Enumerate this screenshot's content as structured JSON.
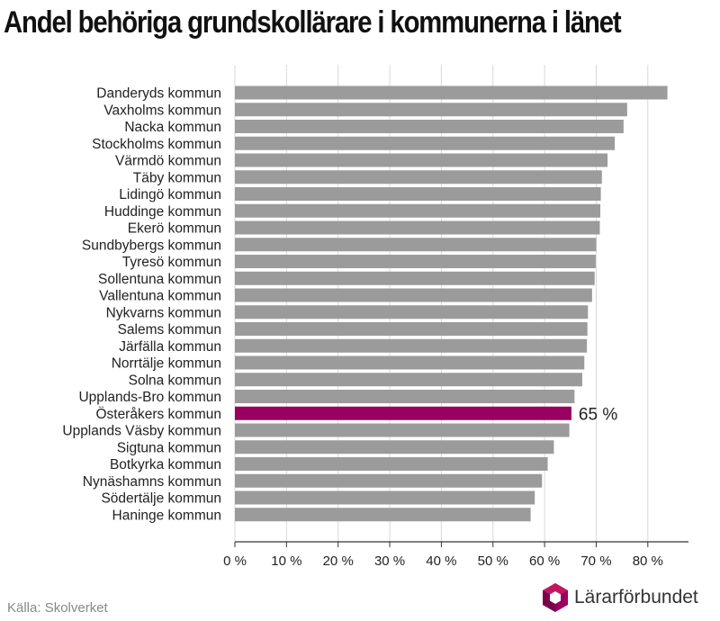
{
  "title": "Andel behöriga grundskollärare i kommunerna i länet",
  "source": "Källa: Skolverket",
  "logo_text": "Lärarförbundet",
  "colors": {
    "bar": "#9b9b9b",
    "highlight": "#9a0060",
    "grid": "#d9d9d9",
    "axis": "#333333"
  },
  "chart_data": {
    "type": "bar",
    "orientation": "horizontal",
    "title": "Andel behöriga grundskollärare i kommunerna i länet",
    "xlabel": "",
    "ylabel": "",
    "xlim": [
      0,
      88
    ],
    "x_ticks": [
      0,
      10,
      20,
      30,
      40,
      50,
      60,
      70,
      80
    ],
    "x_tick_labels": [
      "0 %",
      "10 %",
      "20 %",
      "30 %",
      "40 %",
      "50 %",
      "60 %",
      "70 %",
      "80 %"
    ],
    "grid": "vertical",
    "categories": [
      "Danderyds kommun",
      "Vaxholms kommun",
      "Nacka kommun",
      "Stockholms kommun",
      "Värmdö kommun",
      "Täby kommun",
      "Lidingö kommun",
      "Huddinge kommun",
      "Ekerö kommun",
      "Sundbybergs kommun",
      "Tyresö kommun",
      "Sollentuna kommun",
      "Vallentuna kommun",
      "Nykvarns kommun",
      "Salems kommun",
      "Järfälla kommun",
      "Norrtälje kommun",
      "Solna kommun",
      "Upplands-Bro kommun",
      "Österåkers kommun",
      "Upplands Väsby kommun",
      "Sigtuna kommun",
      "Botkyrka kommun",
      "Nynäshamns kommun",
      "Södertälje kommun",
      "Haninge kommun"
    ],
    "values": [
      83.8,
      76.0,
      75.3,
      73.6,
      72.2,
      71.1,
      70.9,
      70.8,
      70.7,
      70.0,
      69.9,
      69.7,
      69.2,
      68.4,
      68.3,
      68.2,
      67.7,
      67.3,
      65.8,
      65.2,
      64.8,
      61.8,
      60.6,
      59.5,
      58.1,
      57.3
    ],
    "highlight": {
      "category": "Österåkers kommun",
      "label": "65 %"
    }
  }
}
